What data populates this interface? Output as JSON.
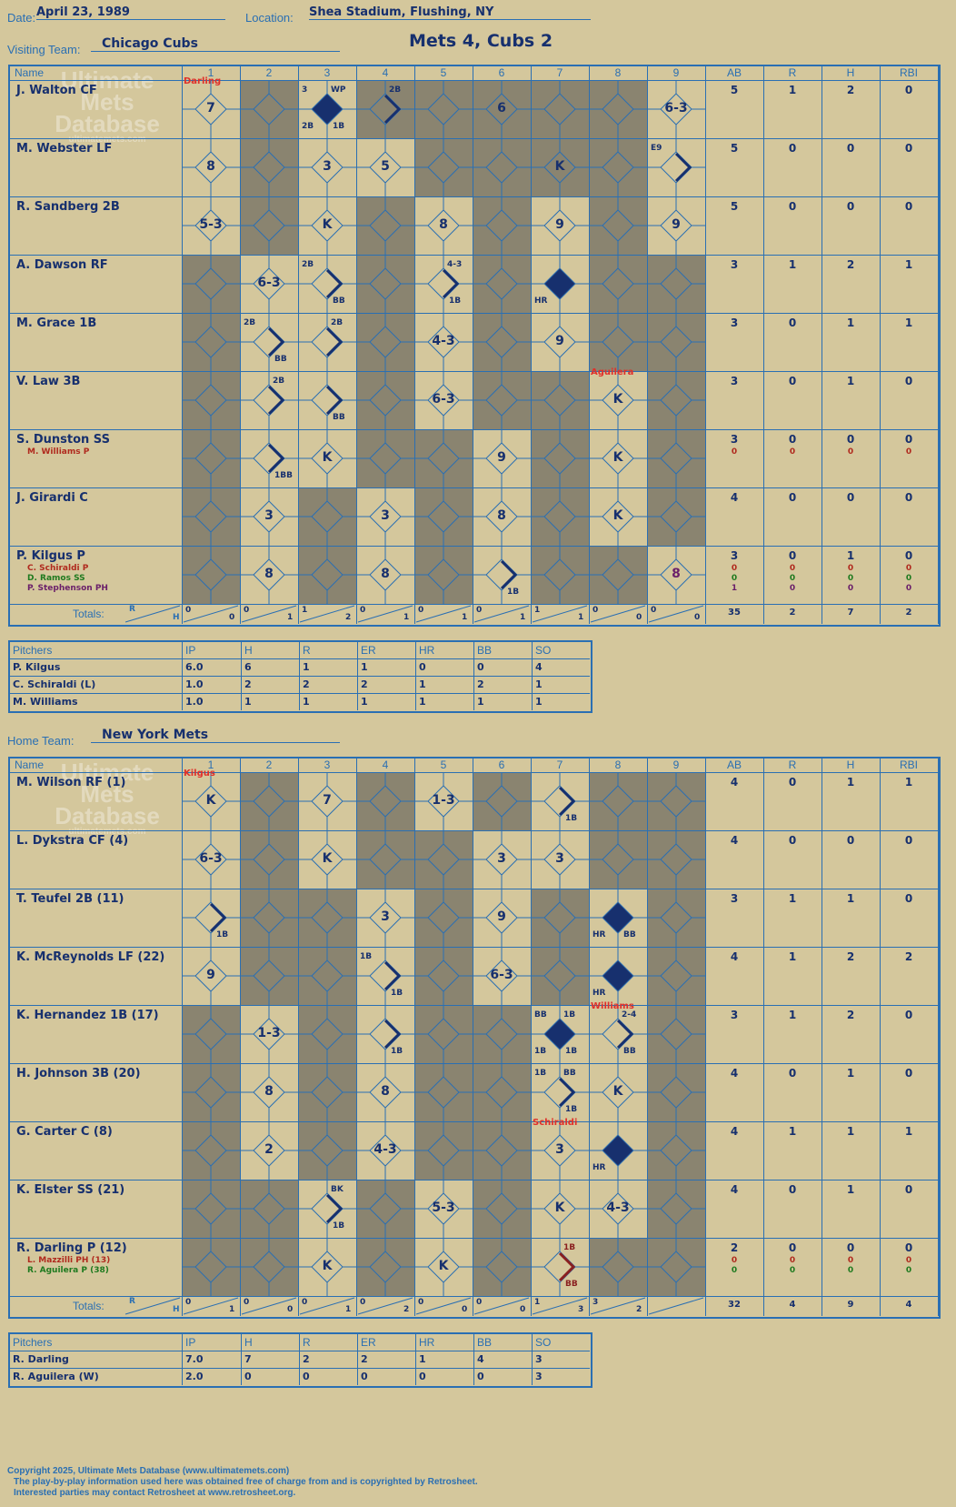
{
  "header": {
    "date_label": "Date:",
    "date": "April 23, 1989",
    "location_label": "Location:",
    "location": "Shea Stadium, Flushing, NY",
    "visiting_label": "Visiting Team:",
    "visiting_team": "Chicago Cubs",
    "home_label": "Home Team:",
    "home_team": "New York Mets",
    "title": "Mets 4, Cubs 2"
  },
  "columns": {
    "name": "Name",
    "innings": [
      "1",
      "2",
      "3",
      "4",
      "5",
      "6",
      "7",
      "8",
      "9"
    ],
    "stats": [
      "AB",
      "R",
      "H",
      "RBI"
    ]
  },
  "watermark": {
    "line1": "Ultimate",
    "line2": "Mets",
    "line3": "Database",
    "url": "ultimatemets.com"
  },
  "visitors": {
    "batters": [
      {
        "name": "J. Walton CF",
        "ab": "5",
        "r": "1",
        "h": "2",
        "rbi": "0",
        "subs": []
      },
      {
        "name": "M. Webster LF",
        "ab": "5",
        "r": "0",
        "h": "0",
        "rbi": "0",
        "subs": []
      },
      {
        "name": "R. Sandberg 2B",
        "ab": "5",
        "r": "0",
        "h": "0",
        "rbi": "0",
        "subs": []
      },
      {
        "name": "A. Dawson RF",
        "ab": "3",
        "r": "1",
        "h": "2",
        "rbi": "1",
        "subs": []
      },
      {
        "name": "M. Grace 1B",
        "ab": "3",
        "r": "0",
        "h": "1",
        "rbi": "1",
        "subs": []
      },
      {
        "name": "V. Law 3B",
        "ab": "3",
        "r": "0",
        "h": "1",
        "rbi": "0",
        "subs": []
      },
      {
        "name": "S. Dunston SS",
        "ab": "3",
        "r": "0",
        "h": "0",
        "rbi": "0",
        "subs": [
          {
            "name": "M. Williams P",
            "color": "#b02a1e",
            "ab": "0",
            "r": "0",
            "h": "0",
            "rbi": "0"
          }
        ]
      },
      {
        "name": "J. Girardi C",
        "ab": "4",
        "r": "0",
        "h": "0",
        "rbi": "0",
        "subs": []
      },
      {
        "name": "P. Kilgus P",
        "ab": "3",
        "r": "0",
        "h": "1",
        "rbi": "0",
        "subs": [
          {
            "name": "C. Schiraldi P",
            "color": "#b02a1e",
            "ab": "0",
            "r": "0",
            "h": "0",
            "rbi": "0"
          },
          {
            "name": "D. Ramos SS",
            "color": "#1f7a1f",
            "ab": "0",
            "r": "0",
            "h": "0",
            "rbi": "0"
          },
          {
            "name": "P. Stephenson PH",
            "color": "#6a1f6a",
            "ab": "1",
            "r": "0",
            "h": "0",
            "rbi": "0"
          }
        ]
      }
    ],
    "plays": [
      {
        "row": 0,
        "col": 0,
        "text": "7",
        "note_top": "Darling",
        "note_color": "red"
      },
      {
        "row": 0,
        "col": 2,
        "text": "",
        "diamond": "filled",
        "tl": "3",
        "tr": "WP",
        "bl": "2B",
        "br": "1B"
      },
      {
        "row": 0,
        "col": 3,
        "text": "",
        "diamond": "half",
        "tr": "2B"
      },
      {
        "row": 0,
        "col": 5,
        "text": "6"
      },
      {
        "row": 0,
        "col": 8,
        "text": "6-3"
      },
      {
        "row": 1,
        "col": 0,
        "text": "8"
      },
      {
        "row": 1,
        "col": 2,
        "text": "3"
      },
      {
        "row": 1,
        "col": 3,
        "text": "5"
      },
      {
        "row": 1,
        "col": 6,
        "text": "K"
      },
      {
        "row": 1,
        "col": 8,
        "text": "",
        "diamond": "half",
        "tl": "E9"
      },
      {
        "row": 2,
        "col": 0,
        "text": "5-3"
      },
      {
        "row": 2,
        "col": 2,
        "text": "K"
      },
      {
        "row": 2,
        "col": 4,
        "text": "8"
      },
      {
        "row": 2,
        "col": 6,
        "text": "9"
      },
      {
        "row": 2,
        "col": 8,
        "text": "9"
      },
      {
        "row": 3,
        "col": 1,
        "text": "6-3"
      },
      {
        "row": 3,
        "col": 2,
        "text": "",
        "diamond": "half",
        "tl": "2B",
        "br": "BB"
      },
      {
        "row": 3,
        "col": 4,
        "text": "",
        "diamond": "half",
        "tr": "4-3",
        "br": "1B"
      },
      {
        "row": 3,
        "col": 6,
        "text": "",
        "diamond": "filled",
        "bl": "HR"
      },
      {
        "row": 4,
        "col": 1,
        "text": "",
        "diamond": "half",
        "tl": "2B",
        "br": "BB"
      },
      {
        "row": 4,
        "col": 2,
        "text": "",
        "diamond": "half",
        "tr": "2B"
      },
      {
        "row": 4,
        "col": 4,
        "text": "4-3"
      },
      {
        "row": 4,
        "col": 6,
        "text": "9"
      },
      {
        "row": 5,
        "col": 1,
        "text": "",
        "diamond": "half",
        "tr": "2B"
      },
      {
        "row": 5,
        "col": 2,
        "text": "",
        "diamond": "half",
        "br": "BB"
      },
      {
        "row": 5,
        "col": 4,
        "text": "6-3"
      },
      {
        "row": 5,
        "col": 7,
        "text": "K",
        "note_top": "Aguilera",
        "note_color": "red"
      },
      {
        "row": 6,
        "col": 1,
        "text": "",
        "diamond": "half",
        "br": "1BB"
      },
      {
        "row": 6,
        "col": 2,
        "text": "K"
      },
      {
        "row": 6,
        "col": 5,
        "text": "9"
      },
      {
        "row": 6,
        "col": 7,
        "text": "K"
      },
      {
        "row": 7,
        "col": 1,
        "text": "3"
      },
      {
        "row": 7,
        "col": 3,
        "text": "3"
      },
      {
        "row": 7,
        "col": 5,
        "text": "8"
      },
      {
        "row": 7,
        "col": 7,
        "text": "K"
      },
      {
        "row": 8,
        "col": 1,
        "text": "8"
      },
      {
        "row": 8,
        "col": 3,
        "text": "8"
      },
      {
        "row": 8,
        "col": 5,
        "text": "",
        "diamond": "half",
        "br": "1B"
      },
      {
        "row": 8,
        "col": 8,
        "text": "8",
        "color": "#6a1f6a"
      }
    ],
    "shaded": [
      [
        1,
        3,
        4,
        5,
        6,
        7
      ],
      [
        1,
        4,
        5,
        6,
        7
      ],
      [
        1,
        3,
        5,
        7
      ],
      [
        0,
        3,
        5,
        7,
        8
      ],
      [
        0,
        3,
        5,
        7,
        8
      ],
      [
        0,
        3,
        5,
        6,
        8
      ],
      [
        0,
        3,
        4,
        6,
        8
      ],
      [
        0,
        2,
        4,
        6,
        8
      ],
      [
        0,
        2,
        4,
        6,
        7
      ]
    ],
    "totals": {
      "label": "Totals:",
      "r_label": "R",
      "h_label": "H",
      "innings": [
        [
          "0",
          "0"
        ],
        [
          "0",
          "1"
        ],
        [
          "1",
          "2"
        ],
        [
          "0",
          "1"
        ],
        [
          "0",
          "1"
        ],
        [
          "0",
          "1"
        ],
        [
          "1",
          "1"
        ],
        [
          "0",
          "0"
        ],
        [
          "0",
          "0"
        ]
      ],
      "ab": "35",
      "r": "2",
      "h": "7",
      "rbi": "2"
    },
    "pitchers_header": [
      "Pitchers",
      "IP",
      "H",
      "R",
      "ER",
      "HR",
      "BB",
      "SO"
    ],
    "pitchers": [
      [
        "P. Kilgus",
        "6.0",
        "6",
        "1",
        "1",
        "0",
        "0",
        "4"
      ],
      [
        "C. Schiraldi (L)",
        "1.0",
        "2",
        "2",
        "2",
        "1",
        "2",
        "1"
      ],
      [
        "M. Williams",
        "1.0",
        "1",
        "1",
        "1",
        "1",
        "1",
        "1"
      ]
    ]
  },
  "home": {
    "batters": [
      {
        "name": "M. Wilson RF (1)",
        "ab": "4",
        "r": "0",
        "h": "1",
        "rbi": "1",
        "subs": []
      },
      {
        "name": "L. Dykstra CF (4)",
        "ab": "4",
        "r": "0",
        "h": "0",
        "rbi": "0",
        "subs": []
      },
      {
        "name": "T. Teufel 2B (11)",
        "ab": "3",
        "r": "1",
        "h": "1",
        "rbi": "0",
        "subs": []
      },
      {
        "name": "K. McReynolds LF (22)",
        "ab": "4",
        "r": "1",
        "h": "2",
        "rbi": "2",
        "subs": []
      },
      {
        "name": "K. Hernandez 1B (17)",
        "ab": "3",
        "r": "1",
        "h": "2",
        "rbi": "0",
        "subs": []
      },
      {
        "name": "H. Johnson 3B (20)",
        "ab": "4",
        "r": "0",
        "h": "1",
        "rbi": "0",
        "subs": []
      },
      {
        "name": "G. Carter C (8)",
        "ab": "4",
        "r": "1",
        "h": "1",
        "rbi": "1",
        "subs": []
      },
      {
        "name": "K. Elster SS (21)",
        "ab": "4",
        "r": "0",
        "h": "1",
        "rbi": "0",
        "subs": []
      },
      {
        "name": "R. Darling P (12)",
        "ab": "2",
        "r": "0",
        "h": "0",
        "rbi": "0",
        "subs": [
          {
            "name": "L. Mazzilli PH (13)",
            "color": "#b02a1e",
            "ab": "0",
            "r": "0",
            "h": "0",
            "rbi": "0"
          },
          {
            "name": "R. Aguilera P (38)",
            "color": "#1f7a1f",
            "ab": "0",
            "r": "0",
            "h": "0",
            "rbi": "0"
          }
        ]
      }
    ],
    "plays": [
      {
        "row": 0,
        "col": 0,
        "text": "K",
        "note_top": "Kilgus",
        "note_color": "red"
      },
      {
        "row": 0,
        "col": 2,
        "text": "7"
      },
      {
        "row": 0,
        "col": 4,
        "text": "1-3"
      },
      {
        "row": 0,
        "col": 6,
        "text": "",
        "diamond": "half",
        "br": "1B"
      },
      {
        "row": 1,
        "col": 0,
        "text": "6-3"
      },
      {
        "row": 1,
        "col": 2,
        "text": "K"
      },
      {
        "row": 1,
        "col": 5,
        "text": "3"
      },
      {
        "row": 1,
        "col": 6,
        "text": "3"
      },
      {
        "row": 2,
        "col": 0,
        "text": "",
        "diamond": "half",
        "br": "1B"
      },
      {
        "row": 2,
        "col": 3,
        "text": "3"
      },
      {
        "row": 2,
        "col": 5,
        "text": "9"
      },
      {
        "row": 2,
        "col": 7,
        "text": "",
        "diamond": "filled",
        "bl": "HR",
        "br": "BB"
      },
      {
        "row": 3,
        "col": 0,
        "text": "9"
      },
      {
        "row": 3,
        "col": 3,
        "text": "",
        "diamond": "half",
        "tl": "1B",
        "br": "1B"
      },
      {
        "row": 3,
        "col": 5,
        "text": "6-3"
      },
      {
        "row": 3,
        "col": 7,
        "text": "",
        "diamond": "filled",
        "bl": "HR"
      },
      {
        "row": 4,
        "col": 1,
        "text": "1-3"
      },
      {
        "row": 4,
        "col": 3,
        "text": "",
        "diamond": "half",
        "br": "1B"
      },
      {
        "row": 4,
        "col": 6,
        "text": "",
        "diamond": "filled",
        "tl": "BB",
        "tr": "1B",
        "bl": "1B",
        "br": "1B"
      },
      {
        "row": 4,
        "col": 7,
        "text": "",
        "diamond": "half",
        "note_top": "Williams",
        "note_color": "red",
        "tr": "2-4",
        "br": "BB"
      },
      {
        "row": 5,
        "col": 1,
        "text": "8"
      },
      {
        "row": 5,
        "col": 3,
        "text": "8"
      },
      {
        "row": 5,
        "col": 6,
        "text": "",
        "diamond": "half",
        "tl": "1B",
        "tr": "BB",
        "br": "1B"
      },
      {
        "row": 5,
        "col": 7,
        "text": "K"
      },
      {
        "row": 6,
        "col": 1,
        "text": "2"
      },
      {
        "row": 6,
        "col": 3,
        "text": "4-3"
      },
      {
        "row": 6,
        "col": 6,
        "text": "3",
        "note_top": "Schiraldi",
        "note_color": "red"
      },
      {
        "row": 6,
        "col": 7,
        "text": "",
        "diamond": "filled",
        "bl": "HR"
      },
      {
        "row": 7,
        "col": 2,
        "text": "",
        "diamond": "half",
        "tr": "BK",
        "br": "1B"
      },
      {
        "row": 7,
        "col": 4,
        "text": "5-3"
      },
      {
        "row": 7,
        "col": 6,
        "text": "K"
      },
      {
        "row": 7,
        "col": 7,
        "text": "4-3"
      },
      {
        "row": 8,
        "col": 2,
        "text": "K"
      },
      {
        "row": 8,
        "col": 4,
        "text": "K"
      },
      {
        "row": 8,
        "col": 6,
        "text": "",
        "diamond": "half",
        "tr": "1B",
        "br": "BB",
        "color": "#8a1f1f"
      }
    ],
    "shaded": [
      [
        1,
        3,
        5,
        7,
        8
      ],
      [
        1,
        3,
        4,
        7,
        8
      ],
      [
        1,
        2,
        4,
        6,
        8
      ],
      [
        1,
        2,
        4,
        6,
        8
      ],
      [
        0,
        2,
        4,
        5,
        8
      ],
      [
        0,
        2,
        4,
        5,
        8
      ],
      [
        0,
        2,
        4,
        5,
        8
      ],
      [
        0,
        1,
        3,
        5,
        8
      ],
      [
        0,
        1,
        3,
        5,
        7,
        8
      ]
    ],
    "totals": {
      "label": "Totals:",
      "r_label": "R",
      "h_label": "H",
      "innings": [
        [
          "0",
          "1"
        ],
        [
          "0",
          "0"
        ],
        [
          "0",
          "1"
        ],
        [
          "0",
          "2"
        ],
        [
          "0",
          "0"
        ],
        [
          "0",
          "0"
        ],
        [
          "1",
          "3"
        ],
        [
          "3",
          "2"
        ],
        [
          "",
          ""
        ]
      ],
      "ab": "32",
      "r": "4",
      "h": "9",
      "rbi": "4"
    },
    "pitchers_header": [
      "Pitchers",
      "IP",
      "H",
      "R",
      "ER",
      "HR",
      "BB",
      "SO"
    ],
    "pitchers": [
      [
        "R. Darling",
        "7.0",
        "7",
        "2",
        "2",
        "1",
        "4",
        "3"
      ],
      [
        "R. Aguilera (W)",
        "2.0",
        "0",
        "0",
        "0",
        "0",
        "0",
        "3"
      ]
    ]
  },
  "footer": {
    "line1": "Copyright 2025, Ultimate Mets Database (www.ultimatemets.com)",
    "line2": "The play-by-play information used here was obtained free of charge from and is copyrighted by Retrosheet.",
    "line3": "Interested parties may contact Retrosheet at www.retrosheet.org."
  }
}
